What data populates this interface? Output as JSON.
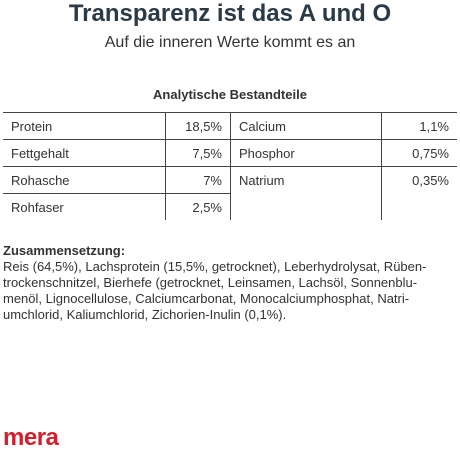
{
  "header": {
    "title": "Transparenz ist das A und O",
    "subtitle": "Auf die inneren Werte kommt es an"
  },
  "table": {
    "title": "Analytische Bestandteile",
    "rows": [
      [
        "Protein",
        "18,5%",
        "Calcium",
        "1,1%"
      ],
      [
        "Fettgehalt",
        "7,5%",
        "Phosphor",
        "0,75%"
      ],
      [
        "Rohasche",
        "7%",
        "Natrium",
        "0,35%"
      ],
      [
        "Rohfaser",
        "2,5%"
      ]
    ]
  },
  "composition": {
    "heading": "Zusammensetzung:",
    "lines": [
      "Reis (64,5%), Lachsprotein (15,5%, getrocknet), Leberhydrolysat, Rüben-",
      "trockenschnitzel, Bierhefe (getrocknet, Leinsamen, Lachsöl, Sonnenblu-",
      "menöl, Lignocellulose, Calciumcarbonat, Monocalciumphosphat, Natri-",
      "umchlorid, Kaliumchlorid, Zichorien-Inulin (0,1%)."
    ]
  },
  "brand": {
    "logo": "mera"
  }
}
